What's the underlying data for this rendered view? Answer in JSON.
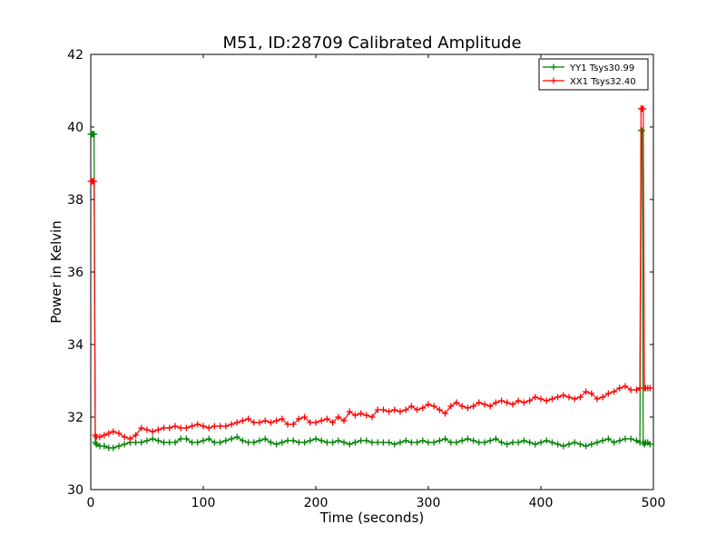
{
  "chart_data": {
    "type": "line",
    "title": "M51, ID:28709 Calibrated Amplitude",
    "xlabel": "Time (seconds)",
    "ylabel": "Power in Kelvin",
    "xlim": [
      0,
      500
    ],
    "ylim": [
      30,
      42
    ],
    "xticks": [
      0,
      100,
      200,
      300,
      400,
      500
    ],
    "yticks": [
      30,
      32,
      34,
      36,
      38,
      40,
      42
    ],
    "grid": false,
    "legend_position": "top-right",
    "series": [
      {
        "name": "YY1 Tsys30.99",
        "color": "#008000",
        "marker": "+",
        "x": [
          0,
          1,
          2,
          3,
          4,
          5,
          8,
          12,
          16,
          20,
          25,
          30,
          35,
          40,
          45,
          50,
          55,
          60,
          65,
          70,
          75,
          80,
          85,
          90,
          95,
          100,
          105,
          110,
          115,
          120,
          125,
          130,
          135,
          140,
          145,
          150,
          155,
          160,
          165,
          170,
          175,
          180,
          185,
          190,
          195,
          200,
          205,
          210,
          215,
          220,
          225,
          230,
          235,
          240,
          245,
          250,
          255,
          260,
          265,
          270,
          275,
          280,
          285,
          290,
          295,
          300,
          305,
          310,
          315,
          320,
          325,
          330,
          335,
          340,
          345,
          350,
          355,
          360,
          365,
          370,
          375,
          380,
          385,
          390,
          395,
          400,
          405,
          410,
          415,
          420,
          425,
          430,
          435,
          440,
          445,
          450,
          455,
          460,
          465,
          470,
          475,
          480,
          485,
          488,
          489,
          490,
          491,
          492,
          493,
          495,
          497
        ],
        "y": [
          39.8,
          39.8,
          39.8,
          39.8,
          31.3,
          31.25,
          31.2,
          31.2,
          31.15,
          31.15,
          31.2,
          31.25,
          31.3,
          31.3,
          31.3,
          31.35,
          31.4,
          31.35,
          31.3,
          31.3,
          31.3,
          31.4,
          31.4,
          31.3,
          31.3,
          31.35,
          31.4,
          31.3,
          31.3,
          31.35,
          31.4,
          31.45,
          31.35,
          31.3,
          31.3,
          31.35,
          31.4,
          31.3,
          31.25,
          31.3,
          31.35,
          31.35,
          31.3,
          31.3,
          31.35,
          31.4,
          31.35,
          31.3,
          31.3,
          31.35,
          31.3,
          31.25,
          31.3,
          31.35,
          31.35,
          31.3,
          31.3,
          31.3,
          31.3,
          31.25,
          31.3,
          31.35,
          31.3,
          31.3,
          31.35,
          31.3,
          31.3,
          31.35,
          31.4,
          31.3,
          31.3,
          31.35,
          31.4,
          31.35,
          31.3,
          31.3,
          31.35,
          31.4,
          31.3,
          31.25,
          31.3,
          31.3,
          31.35,
          31.3,
          31.25,
          31.3,
          31.35,
          31.3,
          31.25,
          31.2,
          31.25,
          31.3,
          31.25,
          31.2,
          31.25,
          31.3,
          31.35,
          31.4,
          31.3,
          31.35,
          31.4,
          31.4,
          31.35,
          31.3,
          39.9,
          39.9,
          31.3,
          31.25,
          31.3,
          31.3,
          31.25
        ]
      },
      {
        "name": "XX1 Tsys32.40",
        "color": "#ff0000",
        "marker": "+",
        "x": [
          0,
          1,
          2,
          3,
          4,
          5,
          8,
          12,
          16,
          20,
          25,
          30,
          35,
          40,
          45,
          50,
          55,
          60,
          65,
          70,
          75,
          80,
          85,
          90,
          95,
          100,
          105,
          110,
          115,
          120,
          125,
          130,
          135,
          140,
          145,
          150,
          155,
          160,
          165,
          170,
          175,
          180,
          185,
          190,
          195,
          200,
          205,
          210,
          215,
          220,
          225,
          230,
          235,
          240,
          245,
          250,
          255,
          260,
          265,
          270,
          275,
          280,
          285,
          290,
          295,
          300,
          305,
          310,
          315,
          320,
          325,
          330,
          335,
          340,
          345,
          350,
          355,
          360,
          365,
          370,
          375,
          380,
          385,
          390,
          395,
          400,
          405,
          410,
          415,
          420,
          425,
          430,
          435,
          440,
          445,
          450,
          455,
          460,
          465,
          470,
          475,
          480,
          485,
          488,
          489,
          490,
          491,
          492,
          493,
          495,
          497
        ],
        "y": [
          38.5,
          38.5,
          38.5,
          38.5,
          31.5,
          31.45,
          31.45,
          31.5,
          31.55,
          31.6,
          31.55,
          31.45,
          31.4,
          31.5,
          31.7,
          31.65,
          31.6,
          31.65,
          31.7,
          31.7,
          31.75,
          31.7,
          31.7,
          31.75,
          31.8,
          31.75,
          31.7,
          31.75,
          31.75,
          31.75,
          31.8,
          31.85,
          31.9,
          31.95,
          31.85,
          31.85,
          31.9,
          31.85,
          31.9,
          31.95,
          31.8,
          31.8,
          31.95,
          32.0,
          31.85,
          31.85,
          31.9,
          31.95,
          31.85,
          32.0,
          31.9,
          32.15,
          32.05,
          32.1,
          32.05,
          32.0,
          32.2,
          32.2,
          32.15,
          32.2,
          32.15,
          32.2,
          32.3,
          32.2,
          32.25,
          32.35,
          32.3,
          32.2,
          32.1,
          32.3,
          32.4,
          32.3,
          32.25,
          32.3,
          32.4,
          32.35,
          32.3,
          32.4,
          32.45,
          32.4,
          32.35,
          32.45,
          32.4,
          32.45,
          32.55,
          32.5,
          32.45,
          32.5,
          32.55,
          32.6,
          32.55,
          32.5,
          32.55,
          32.7,
          32.65,
          32.5,
          32.55,
          32.65,
          32.7,
          32.8,
          32.85,
          32.75,
          32.75,
          32.8,
          40.5,
          40.5,
          40.5,
          32.8,
          32.8,
          32.8,
          32.8
        ]
      }
    ]
  }
}
